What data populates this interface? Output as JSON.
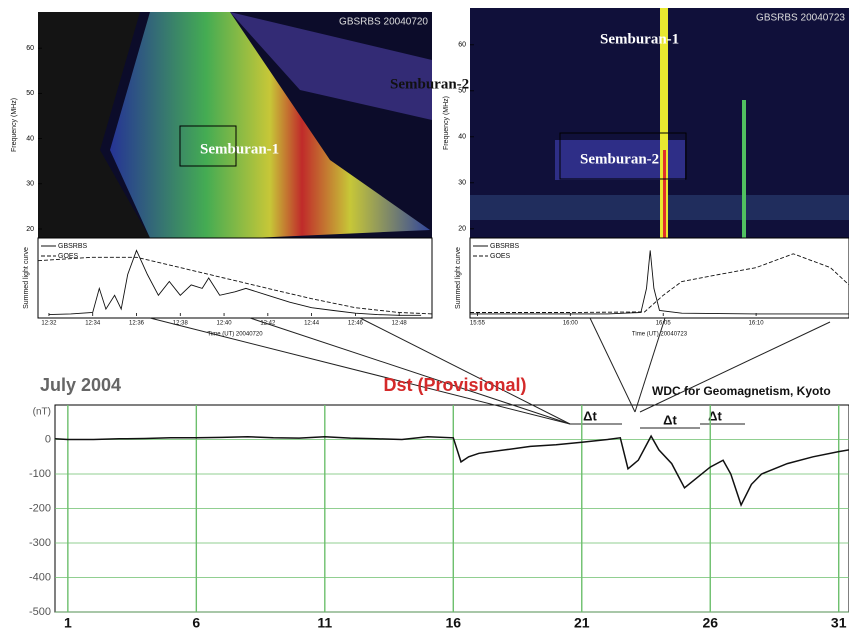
{
  "chart_data": [
    {
      "type": "spectrogram",
      "label": "GBSRBS 20040720",
      "ylabel": "Frequency (MHz)",
      "ylim": [
        18,
        68
      ],
      "yticks": [
        20,
        30,
        40,
        50,
        60
      ],
      "annotations": [
        "Semburan-1"
      ]
    },
    {
      "type": "line",
      "ylabel": "Summed light curve",
      "xlabel": "Time (UT) 20040720",
      "xlim": [
        31.5,
        49.5
      ],
      "ylim": [
        0,
        1.1
      ],
      "xticks": [
        {
          "value": 32,
          "label": "12:32"
        },
        {
          "value": 34,
          "label": "12:34"
        },
        {
          "value": 36,
          "label": "12:36"
        },
        {
          "value": 38,
          "label": "12:38"
        },
        {
          "value": 40,
          "label": "12:40"
        },
        {
          "value": 42,
          "label": "12:42"
        },
        {
          "value": 44,
          "label": "12:44"
        },
        {
          "value": 46,
          "label": "12:46"
        },
        {
          "value": 48,
          "label": "12:48"
        }
      ],
      "series": [
        {
          "name": "GBSRBS",
          "color": "#111",
          "dashed": false,
          "x": [
            32,
            33,
            34,
            34.3,
            34.6,
            35,
            35.3,
            35.6,
            36,
            36.5,
            37,
            37.5,
            38,
            38.5,
            39,
            39.3,
            39.8,
            40.5,
            41,
            42,
            43,
            44,
            45,
            46,
            47,
            48,
            49
          ],
          "values": [
            0.02,
            0.03,
            0.05,
            0.4,
            0.1,
            0.3,
            0.1,
            0.6,
            0.95,
            0.6,
            0.3,
            0.5,
            0.3,
            0.45,
            0.4,
            0.55,
            0.3,
            0.35,
            0.4,
            0.3,
            0.2,
            0.12,
            0.08,
            0.04,
            0.02,
            0.01,
            0.01
          ]
        },
        {
          "name": "GOES",
          "color": "#111",
          "dashed": true,
          "x": [
            31.5,
            34,
            36,
            38,
            40,
            42,
            44,
            46,
            48,
            49.5
          ],
          "values": [
            0.8,
            0.85,
            0.85,
            0.7,
            0.55,
            0.4,
            0.25,
            0.12,
            0.05,
            0.03
          ]
        }
      ]
    },
    {
      "type": "spectrogram",
      "label": "GBSRBS 20040723",
      "ylabel": "Frequency (MHz)",
      "ylim": [
        18,
        68
      ],
      "yticks": [
        20,
        30,
        40,
        50,
        60
      ],
      "annotations": [
        "Semburan-1",
        "Semburan-2",
        "Semburan-2"
      ]
    },
    {
      "type": "line",
      "ylabel": "Summed light curve",
      "xlabel": "Time (UT) 20040723",
      "xlim": [
        54.6,
        75
      ],
      "ylim": [
        0,
        1.1
      ],
      "xticks": [
        {
          "value": 55,
          "label": "15:55"
        },
        {
          "value": 60,
          "label": "16:00"
        },
        {
          "value": 65,
          "label": "16:05"
        },
        {
          "value": 70,
          "label": "16:10"
        }
      ],
      "series": [
        {
          "name": "GBSRBS",
          "color": "#111",
          "dashed": false,
          "x": [
            54.6,
            58,
            62,
            63.8,
            64.1,
            64.3,
            64.5,
            64.8,
            66,
            70,
            75
          ],
          "values": [
            0.03,
            0.03,
            0.03,
            0.05,
            0.4,
            0.95,
            0.4,
            0.08,
            0.04,
            0.03,
            0.03
          ]
        },
        {
          "name": "GOES",
          "color": "#111",
          "dashed": true,
          "x": [
            54.6,
            60,
            64,
            65,
            66,
            68,
            70,
            72,
            74,
            75
          ],
          "values": [
            0.05,
            0.05,
            0.06,
            0.3,
            0.5,
            0.6,
            0.7,
            0.9,
            0.7,
            0.45
          ]
        }
      ]
    },
    {
      "type": "line",
      "title": "Dst (Provisional)",
      "subtitle": "July 2004",
      "source": "WDC for Geomagnetism, Kyoto",
      "ylabel": "(nT)",
      "xlim": [
        0.5,
        31.4
      ],
      "ylim": [
        -500,
        100
      ],
      "grid": true,
      "xticks": [
        1,
        6,
        11,
        16,
        21,
        26,
        31
      ],
      "yticks": [
        0,
        -100,
        -200,
        -300,
        -400,
        -500
      ],
      "annotations": [
        "Δt",
        "Δt",
        "Δt"
      ],
      "series": [
        {
          "name": "Dst",
          "color": "#111",
          "x": [
            0.5,
            1,
            2,
            3,
            4,
            5,
            6,
            7,
            8,
            9,
            10,
            11,
            12,
            13,
            14,
            15,
            16,
            16.3,
            16.6,
            17,
            18,
            19,
            20,
            21,
            22,
            22.5,
            22.8,
            23.2,
            23.7,
            24,
            24.5,
            25,
            25.5,
            26,
            26.5,
            26.8,
            27.2,
            27.6,
            28,
            29,
            30,
            31,
            31.4
          ],
          "values": [
            2,
            0,
            0,
            2,
            3,
            5,
            5,
            6,
            8,
            5,
            4,
            8,
            4,
            2,
            0,
            8,
            5,
            -65,
            -50,
            -40,
            -30,
            -20,
            -15,
            -8,
            0,
            5,
            -85,
            -60,
            10,
            -30,
            -70,
            -140,
            -110,
            -80,
            -60,
            -100,
            -190,
            -130,
            -100,
            -70,
            -50,
            -35,
            -30
          ]
        }
      ]
    }
  ]
}
